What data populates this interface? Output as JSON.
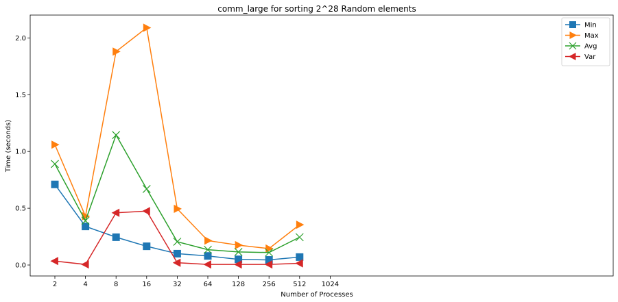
{
  "chart_data": {
    "type": "line",
    "title": "comm_large for sorting 2^28 Random elements",
    "xlabel": "Number of Processes",
    "ylabel": "Time (seconds)",
    "x_scale": "log2",
    "x": [
      2,
      4,
      8,
      16,
      32,
      64,
      128,
      256,
      512
    ],
    "x_ticks": [
      "2",
      "4",
      "8",
      "16",
      "32",
      "64",
      "128",
      "256",
      "512",
      "1024"
    ],
    "y_ticks": [
      "0.0",
      "0.5",
      "1.0",
      "1.5",
      "2.0"
    ],
    "ylim": [
      -0.1,
      2.2
    ],
    "grid": false,
    "legend_position": "top-right",
    "series": [
      {
        "name": "Min",
        "color": "#1f77b4",
        "marker": "square",
        "values": [
          0.71,
          0.34,
          0.245,
          0.165,
          0.1,
          0.08,
          0.05,
          0.045,
          0.07
        ]
      },
      {
        "name": "Max",
        "color": "#ff7f0e",
        "marker": "triangle-right",
        "values": [
          1.06,
          0.43,
          1.88,
          2.09,
          0.495,
          0.215,
          0.175,
          0.145,
          0.355
        ]
      },
      {
        "name": "Avg",
        "color": "#2ca02c",
        "marker": "x",
        "values": [
          0.89,
          0.39,
          1.145,
          0.67,
          0.205,
          0.135,
          0.115,
          0.11,
          0.245
        ]
      },
      {
        "name": "Var",
        "color": "#d62728",
        "marker": "triangle-left",
        "values": [
          0.035,
          0.005,
          0.46,
          0.475,
          0.02,
          0.005,
          0.005,
          0.005,
          0.015
        ]
      }
    ]
  }
}
